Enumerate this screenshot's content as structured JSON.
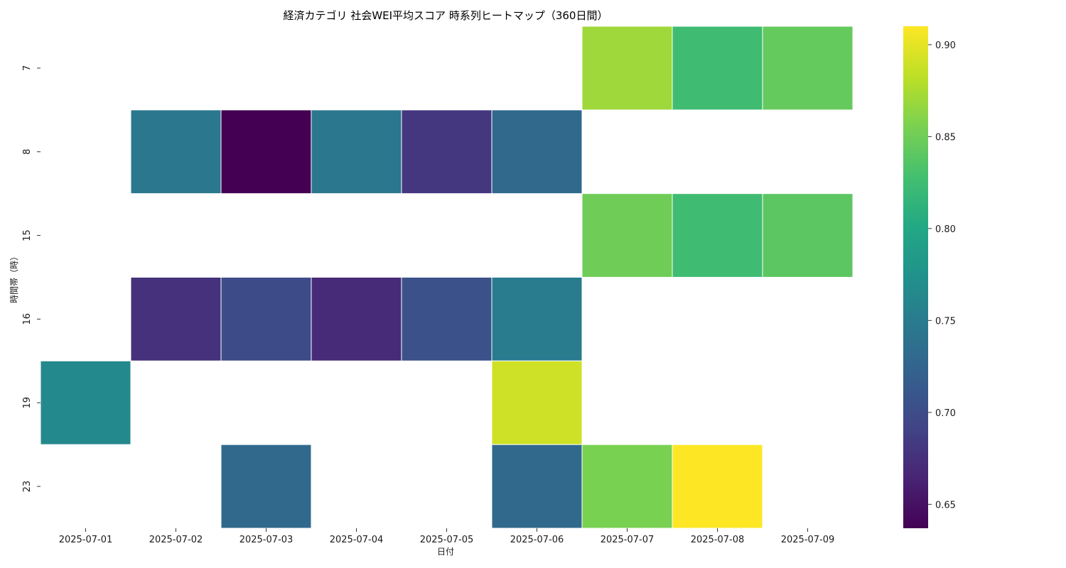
{
  "chart_data": {
    "type": "heatmap",
    "title": "経済カテゴリ 社会WEI平均スコア 時系列ヒートマップ（360日間）",
    "xlabel": "日付",
    "ylabel": "時間帯（時）",
    "x": [
      "2025-07-01",
      "2025-07-02",
      "2025-07-03",
      "2025-07-04",
      "2025-07-05",
      "2025-07-06",
      "2025-07-07",
      "2025-07-08",
      "2025-07-09"
    ],
    "y": [
      "7",
      "8",
      "15",
      "16",
      "19",
      "23"
    ],
    "values": [
      [
        null,
        null,
        null,
        null,
        null,
        null,
        0.87,
        0.825,
        0.845
      ],
      [
        null,
        0.745,
        0.637,
        0.745,
        0.68,
        0.73,
        null,
        null,
        null
      ],
      [
        null,
        null,
        null,
        null,
        null,
        null,
        0.85,
        0.825,
        0.84
      ],
      [
        null,
        0.675,
        0.7,
        0.67,
        0.705,
        0.75,
        null,
        null,
        null
      ],
      [
        0.765,
        null,
        null,
        null,
        null,
        0.89,
        null,
        null,
        null
      ],
      [
        null,
        null,
        0.73,
        null,
        null,
        0.73,
        0.855,
        0.91,
        null
      ]
    ],
    "colorbar": {
      "colormap": "viridis",
      "range": [
        0.637,
        0.91
      ],
      "ticks": [
        0.65,
        0.7,
        0.75,
        0.8,
        0.85,
        0.9
      ],
      "tick_labels": [
        "0.65",
        "0.70",
        "0.75",
        "0.80",
        "0.85",
        "0.90"
      ]
    },
    "missing_cells": "blank"
  }
}
